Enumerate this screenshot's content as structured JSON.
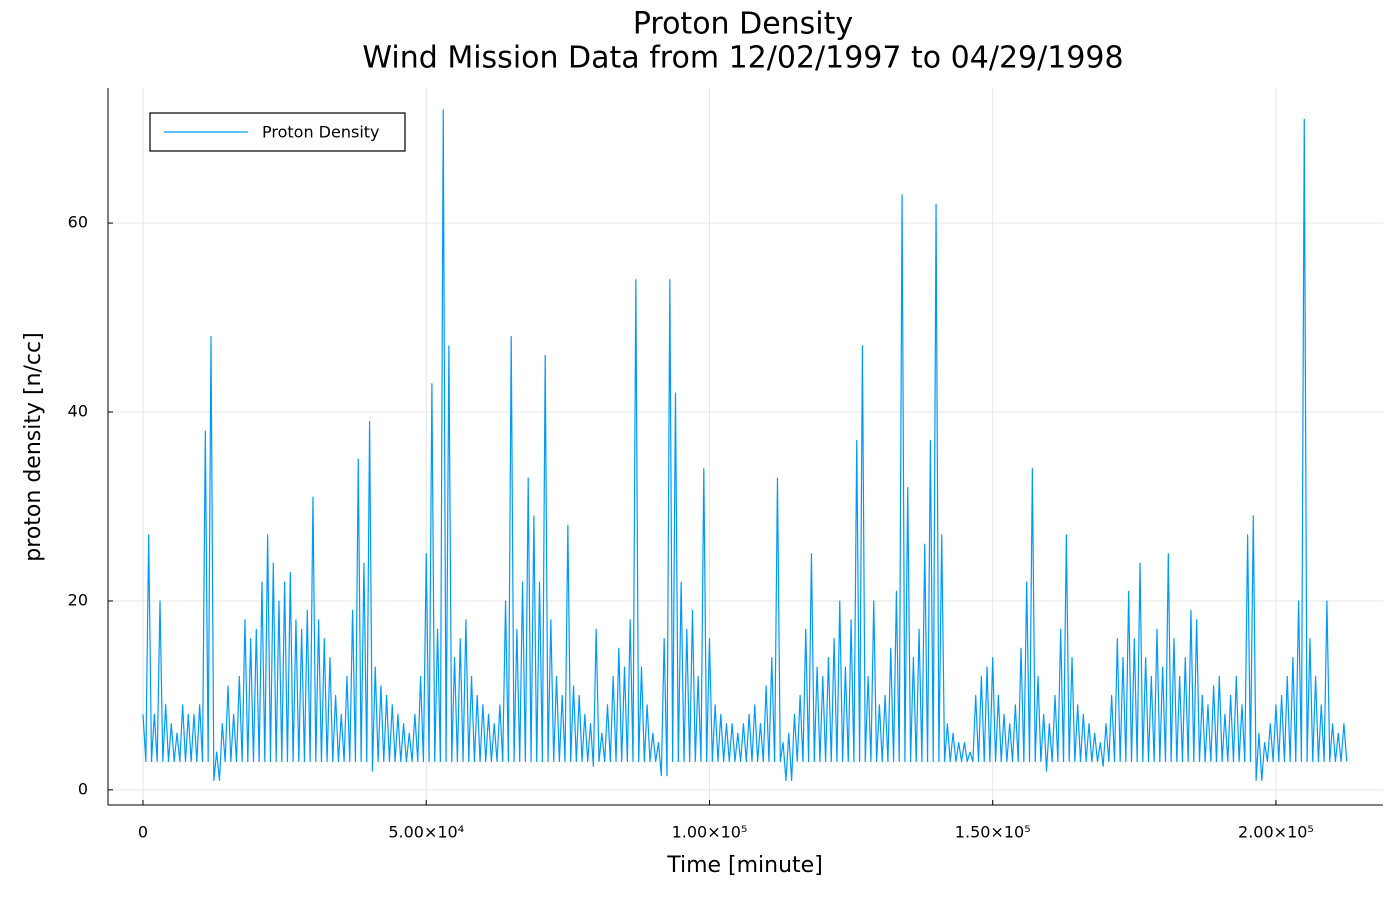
{
  "chart_data": {
    "type": "line",
    "title": "Proton Density",
    "subtitle": "Wind Mission Data from 12/02/1997 to 04/29/1998",
    "x_label": "Time [minute]",
    "y_label": "proton density [n/cc]",
    "x": [
      0,
      500,
      1000,
      1500,
      2000,
      2500,
      3000,
      3500,
      4000,
      4500,
      5000,
      5500,
      6000,
      6500,
      7000,
      7500,
      8000,
      8500,
      9000,
      9500,
      10000,
      10500,
      11000,
      11500,
      12000,
      12500,
      13000,
      13500,
      14000,
      14500,
      15000,
      15500,
      16000,
      16500,
      17000,
      17500,
      18000,
      18500,
      19000,
      19500,
      20000,
      20500,
      21000,
      21500,
      22000,
      22500,
      23000,
      23500,
      24000,
      24500,
      25000,
      25500,
      26000,
      26500,
      27000,
      27500,
      28000,
      28500,
      29000,
      29500,
      30000,
      30500,
      31000,
      31500,
      32000,
      32500,
      33000,
      33500,
      34000,
      34500,
      35000,
      35500,
      36000,
      36500,
      37000,
      37500,
      38000,
      38500,
      39000,
      39500,
      40000,
      40500,
      41000,
      41500,
      42000,
      42500,
      43000,
      43500,
      44000,
      44500,
      45000,
      45500,
      46000,
      46500,
      47000,
      47500,
      48000,
      48500,
      49000,
      49500,
      50000,
      50500,
      51000,
      51500,
      52000,
      52500,
      53000,
      53500,
      54000,
      54500,
      55000,
      55500,
      56000,
      56500,
      57000,
      57500,
      58000,
      58500,
      59000,
      59500,
      60000,
      60500,
      61000,
      61500,
      62000,
      62500,
      63000,
      63500,
      64000,
      64500,
      65000,
      65500,
      66000,
      66500,
      67000,
      67500,
      68000,
      68500,
      69000,
      69500,
      70000,
      70500,
      71000,
      71500,
      72000,
      72500,
      73000,
      73500,
      74000,
      74500,
      75000,
      75500,
      76000,
      76500,
      77000,
      77500,
      78000,
      78500,
      79000,
      79500,
      80000,
      80500,
      81000,
      81500,
      82000,
      82500,
      83000,
      83500,
      84000,
      84500,
      85000,
      85500,
      86000,
      86500,
      87000,
      87500,
      88000,
      88500,
      89000,
      89500,
      90000,
      90500,
      91000,
      91500,
      92000,
      92500,
      93000,
      93500,
      94000,
      94500,
      95000,
      95500,
      96000,
      96500,
      97000,
      97500,
      98000,
      98500,
      99000,
      99500,
      100000,
      100500,
      101000,
      101500,
      102000,
      102500,
      103000,
      103500,
      104000,
      104500,
      105000,
      105500,
      106000,
      106500,
      107000,
      107500,
      108000,
      108500,
      109000,
      109500,
      110000,
      110500,
      111000,
      111500,
      112000,
      112500,
      113000,
      113500,
      114000,
      114500,
      115000,
      115500,
      116000,
      116500,
      117000,
      117500,
      118000,
      118500,
      119000,
      119500,
      120000,
      120500,
      121000,
      121500,
      122000,
      122500,
      123000,
      123500,
      124000,
      124500,
      125000,
      125500,
      126000,
      126500,
      127000,
      127500,
      128000,
      128500,
      129000,
      129500,
      130000,
      130500,
      131000,
      131500,
      132000,
      132500,
      133000,
      133500,
      134000,
      134500,
      135000,
      135500,
      136000,
      136500,
      137000,
      137500,
      138000,
      138500,
      139000,
      139500,
      140000,
      140500,
      141000,
      141500,
      142000,
      142500,
      143000,
      143500,
      144000,
      144500,
      145000,
      145500,
      146000,
      146500,
      147000,
      147500,
      148000,
      148500,
      149000,
      149500,
      150000,
      150500,
      151000,
      151500,
      152000,
      152500,
      153000,
      153500,
      154000,
      154500,
      155000,
      155500,
      156000,
      156500,
      157000,
      157500,
      158000,
      158500,
      159000,
      159500,
      160000,
      160500,
      161000,
      161500,
      162000,
      162500,
      163000,
      163500,
      164000,
      164500,
      165000,
      165500,
      166000,
      166500,
      167000,
      167500,
      168000,
      168500,
      169000,
      169500,
      170000,
      170500,
      171000,
      171500,
      172000,
      172500,
      173000,
      173500,
      174000,
      174500,
      175000,
      175500,
      176000,
      176500,
      177000,
      177500,
      178000,
      178500,
      179000,
      179500,
      180000,
      180500,
      181000,
      181500,
      182000,
      182500,
      183000,
      183500,
      184000,
      184500,
      185000,
      185500,
      186000,
      186500,
      187000,
      187500,
      188000,
      188500,
      189000,
      189500,
      190000,
      190500,
      191000,
      191500,
      192000,
      192500,
      193000,
      193500,
      194000,
      194500,
      195000,
      195500,
      196000,
      196500,
      197000,
      197500,
      198000,
      198500,
      199000,
      199500,
      200000,
      200500,
      201000,
      201500,
      202000,
      202500,
      203000,
      203500,
      204000,
      204500,
      205000,
      205500,
      206000,
      206500,
      207000,
      207500,
      208000,
      208500,
      209000,
      209500,
      210000,
      210500,
      211000,
      211500,
      212000,
      212500
    ],
    "series": [
      {
        "name": "Proton Density",
        "color": "#009af9",
        "values": [
          8,
          3,
          27,
          3,
          8,
          3,
          20,
          3,
          9,
          3,
          7,
          3,
          6,
          3,
          9,
          3,
          8,
          3,
          8,
          3,
          9,
          3,
          38,
          3,
          48,
          1,
          4,
          1,
          7,
          3,
          11,
          3,
          8,
          3,
          12,
          3,
          18,
          3,
          16,
          3,
          17,
          3,
          22,
          3,
          27,
          3,
          24,
          3,
          20,
          3,
          22,
          3,
          23,
          3,
          18,
          3,
          17,
          3,
          19,
          3,
          31,
          3,
          18,
          3,
          16,
          3,
          14,
          3,
          10,
          3,
          8,
          3,
          12,
          3,
          19,
          3,
          35,
          3,
          24,
          3,
          39,
          2,
          13,
          3,
          11,
          3,
          10,
          3,
          9,
          3,
          8,
          3,
          7,
          3,
          6,
          3,
          8,
          3,
          12,
          3,
          25,
          3,
          43,
          3,
          17,
          3,
          72,
          3,
          47,
          3,
          14,
          3,
          16,
          3,
          18,
          3,
          12,
          3,
          10,
          3,
          9,
          3,
          8,
          3,
          7,
          3,
          9,
          3,
          20,
          3,
          48,
          3,
          17,
          3,
          22,
          3,
          33,
          3,
          29,
          3,
          22,
          3,
          46,
          3,
          18,
          3,
          12,
          3,
          10,
          3,
          28,
          3,
          11,
          3,
          10,
          3,
          8,
          3,
          7,
          2.5,
          17,
          3,
          6,
          3,
          9,
          3,
          12,
          3,
          15,
          3,
          13,
          3,
          18,
          3,
          54,
          3,
          13,
          3,
          9,
          3,
          6,
          3,
          5,
          1.5,
          16,
          1.5,
          54,
          3,
          42,
          3,
          22,
          3,
          17,
          3,
          19,
          3,
          12,
          3,
          34,
          3,
          16,
          3,
          9,
          3,
          8,
          3,
          7,
          3,
          7,
          3,
          6,
          3,
          7,
          3,
          8,
          3,
          9,
          3,
          7,
          3,
          11,
          3,
          14,
          3,
          33,
          3,
          5,
          1,
          6,
          1,
          8,
          3,
          10,
          3,
          17,
          3,
          25,
          3,
          13,
          3,
          12,
          3,
          14,
          3,
          16,
          3,
          20,
          3,
          13,
          3,
          18,
          3,
          37,
          3,
          47,
          3,
          12,
          3,
          20,
          3,
          9,
          3,
          10,
          3,
          15,
          3,
          21,
          3,
          63,
          3,
          32,
          3,
          14,
          3,
          17,
          3,
          26,
          3,
          37,
          3,
          62,
          3,
          27,
          3,
          7,
          3,
          6,
          3,
          5,
          3,
          5,
          3,
          4,
          3,
          10,
          3,
          12,
          3,
          13,
          3,
          14,
          3,
          10,
          3,
          8,
          3,
          7,
          3,
          9,
          3,
          15,
          3,
          22,
          3,
          34,
          3,
          12,
          3,
          8,
          2,
          7,
          3,
          10,
          3,
          17,
          3,
          27,
          3,
          14,
          3,
          9,
          3,
          8,
          3,
          7,
          3,
          6,
          3,
          5,
          2.5,
          7,
          3,
          10,
          3,
          16,
          3,
          14,
          3,
          21,
          3,
          16,
          3,
          24,
          3,
          14,
          3,
          12,
          3,
          17,
          3,
          13,
          3,
          25,
          3,
          16,
          3,
          12,
          3,
          14,
          3,
          19,
          3,
          18,
          3,
          10,
          3,
          9,
          3,
          11,
          3,
          12,
          3,
          8,
          3,
          10,
          3,
          12,
          3,
          9,
          3,
          27,
          3,
          29,
          1,
          6,
          1,
          5,
          3,
          7,
          3,
          9,
          3,
          10,
          3,
          12,
          3,
          14,
          3,
          20,
          3,
          71,
          3,
          16,
          3,
          12,
          3,
          9,
          3,
          20,
          3,
          7,
          3,
          6,
          3,
          7,
          3
        ]
      }
    ],
    "xlim": [
      -6180,
      218900
    ],
    "ylim": [
      -1.6,
      74.3
    ],
    "xticks": [
      0,
      {
        "value": 50000,
        "label": "5.00×10⁴"
      },
      {
        "value": 100000,
        "label": "1.00×10⁵"
      },
      {
        "value": 150000,
        "label": "1.50×10⁵"
      },
      {
        "value": 200000,
        "label": "2.00×10⁵"
      }
    ],
    "yticks": [
      0,
      20,
      40,
      60
    ],
    "grid": true,
    "legend": "top-left"
  }
}
